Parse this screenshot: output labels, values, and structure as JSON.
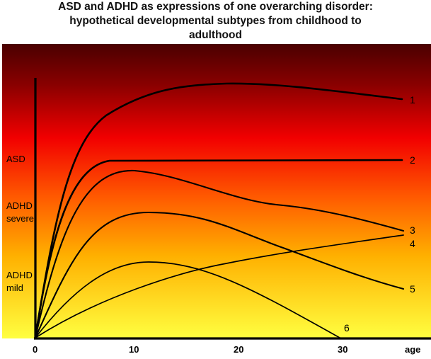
{
  "title": {
    "line1": "ASD and ADHD as expressions of one overarching disorder:",
    "line2": "hypothetical developmental subtypes from childhood to",
    "line3": "adulthood"
  },
  "y_levels": [
    {
      "label": "ASD"
    },
    {
      "label": "ADHD",
      "label2": "severe"
    },
    {
      "label": "ADHD",
      "label2": "mild"
    }
  ],
  "x_axis": {
    "label": "age",
    "ticks": [
      "0",
      "10",
      "20",
      "30"
    ]
  },
  "curves": [
    {
      "label": "1"
    },
    {
      "label": "2"
    },
    {
      "label": "3"
    },
    {
      "label": "4"
    },
    {
      "label": "5"
    },
    {
      "label": "6"
    }
  ],
  "colors": {
    "gradient_top": "#4a0000",
    "gradient_mid": "#f20000",
    "gradient_low": "#ff8800",
    "gradient_bottom": "#ffff40",
    "curve": "#000000"
  }
}
